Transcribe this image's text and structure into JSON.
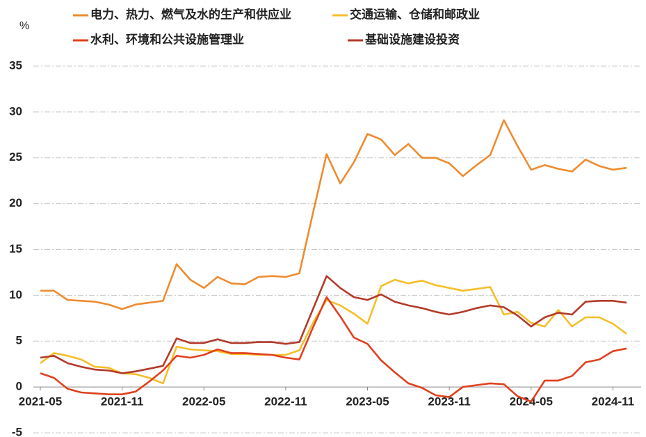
{
  "chart_data": {
    "type": "line",
    "ylabel": "%",
    "legend": "top",
    "grid": true,
    "categories": [
      "2021-05",
      null,
      null,
      null,
      null,
      null,
      "2021-11",
      null,
      null,
      null,
      null,
      null,
      "2022-05",
      null,
      null,
      null,
      null,
      null,
      "2022-11",
      null,
      null,
      null,
      null,
      null,
      "2023-05",
      null,
      null,
      null,
      null,
      null,
      "2023-11",
      null,
      null,
      null,
      null,
      null,
      "2024-05",
      null,
      null,
      null,
      null,
      null,
      "2024-11",
      null
    ],
    "ylim": [
      -5,
      35
    ],
    "yticks": [
      -5,
      0,
      5,
      10,
      15,
      20,
      25,
      30,
      35
    ],
    "series": [
      {
        "name": "电力、热力、燃气及水的生产和供应业",
        "color": "#EE8B2F",
        "values": [
          10.5,
          10.5,
          9.5,
          9.4,
          9.3,
          9.0,
          8.5,
          9.0,
          9.2,
          9.4,
          13.4,
          11.7,
          10.8,
          12.0,
          11.3,
          11.2,
          12.0,
          12.1,
          12.0,
          12.4,
          19.0,
          25.4,
          22.2,
          24.5,
          27.6,
          27.0,
          25.3,
          26.5,
          25.0,
          25.0,
          24.4,
          23.0,
          24.2,
          25.3,
          29.1,
          26.3,
          23.7,
          24.2,
          23.8,
          23.5,
          24.8,
          24.1,
          23.7,
          23.9
        ]
      },
      {
        "name": "交通运输、仓储和邮政业",
        "color": "#F5BE2A",
        "values": [
          2.6,
          3.7,
          3.4,
          3.0,
          2.2,
          2.1,
          1.5,
          1.4,
          1.0,
          0.4,
          4.4,
          4.1,
          4.0,
          3.9,
          3.6,
          3.6,
          3.5,
          3.5,
          3.5,
          4.0,
          7.0,
          9.5,
          8.9,
          8.0,
          6.9,
          11.0,
          11.7,
          11.3,
          11.6,
          11.1,
          10.8,
          10.5,
          10.7,
          10.9,
          7.9,
          8.2,
          7.0,
          6.6,
          8.4,
          6.6,
          7.6,
          7.6,
          6.9,
          5.8
        ]
      },
      {
        "name": "水利、环境和公共设施管理业",
        "color": "#E0401E",
        "values": [
          1.5,
          1.0,
          -0.2,
          -0.6,
          -0.7,
          -0.8,
          -0.8,
          -0.5,
          0.6,
          1.8,
          3.4,
          3.2,
          3.5,
          4.1,
          3.7,
          3.7,
          3.6,
          3.5,
          3.2,
          3.0,
          6.5,
          9.8,
          7.7,
          5.4,
          4.7,
          2.9,
          1.6,
          0.4,
          -0.1,
          -0.9,
          -1.1,
          0.0,
          0.2,
          0.4,
          0.3,
          -1.0,
          -1.6,
          0.7,
          0.7,
          1.2,
          2.7,
          3.0,
          3.9,
          4.2
        ]
      },
      {
        "name": "基础设施建设投资",
        "color": "#B23A2A",
        "values": [
          3.2,
          3.4,
          2.6,
          2.2,
          1.9,
          1.8,
          1.5,
          1.7,
          2.0,
          2.3,
          5.3,
          4.8,
          4.8,
          5.2,
          4.8,
          4.8,
          4.9,
          4.9,
          4.7,
          4.9,
          8.5,
          12.1,
          10.8,
          9.8,
          9.5,
          10.1,
          9.3,
          8.9,
          8.6,
          8.2,
          7.9,
          8.2,
          8.6,
          8.9,
          8.7,
          7.8,
          6.6,
          7.6,
          8.1,
          7.9,
          9.3,
          9.4,
          9.4,
          9.2
        ]
      }
    ]
  }
}
